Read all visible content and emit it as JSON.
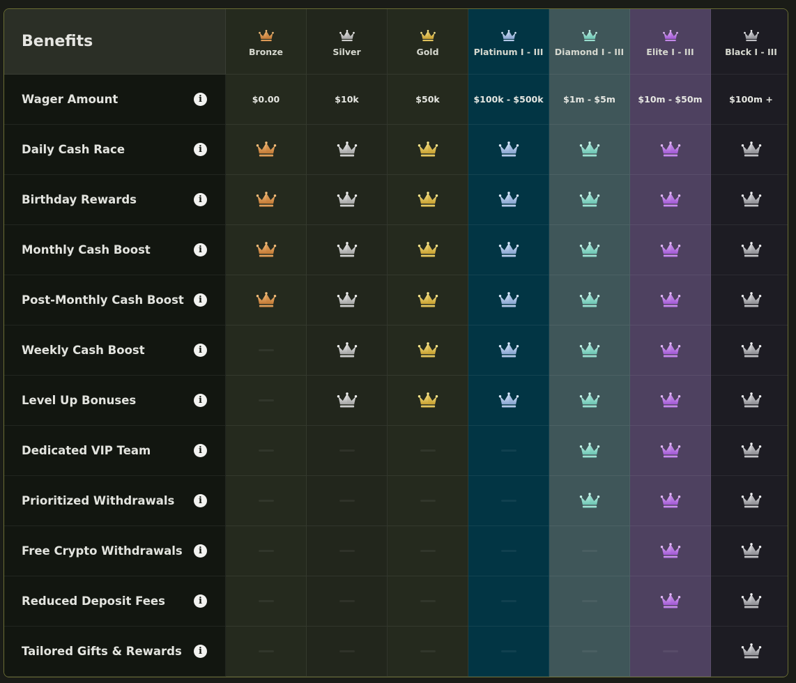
{
  "header": {
    "title": "Benefits"
  },
  "tiers": [
    {
      "name": "Bronze",
      "wager": "$0.00",
      "color_light": "#f3bd7a",
      "color_dark": "#c47a36"
    },
    {
      "name": "Silver",
      "wager": "$10k",
      "color_light": "#f2f2f0",
      "color_dark": "#a6a6a6"
    },
    {
      "name": "Gold",
      "wager": "$50k",
      "color_light": "#f7e58b",
      "color_dark": "#caa232"
    },
    {
      "name": "Platinum I - III",
      "wager": "$100k - $500k",
      "color_light": "#dbe9fb",
      "color_dark": "#8aa6d2"
    },
    {
      "name": "Diamond I - III",
      "wager": "$1m - $5m",
      "color_light": "#c7f5ea",
      "color_dark": "#6ec7b4"
    },
    {
      "name": "Elite I - III",
      "wager": "$10m - $50m",
      "color_light": "#e3b8f8",
      "color_dark": "#a259d6"
    },
    {
      "name": "Black I - III",
      "wager": "$100m +",
      "color_light": "#f0f0f2",
      "color_dark": "#8e8e94"
    }
  ],
  "wager_label": "Wager Amount",
  "benefits": [
    {
      "label": "Daily Cash Race",
      "availability": [
        true,
        true,
        true,
        true,
        true,
        true,
        true
      ]
    },
    {
      "label": "Birthday Rewards",
      "availability": [
        true,
        true,
        true,
        true,
        true,
        true,
        true
      ]
    },
    {
      "label": "Monthly Cash Boost",
      "availability": [
        true,
        true,
        true,
        true,
        true,
        true,
        true
      ]
    },
    {
      "label": "Post-Monthly Cash Boost",
      "availability": [
        true,
        true,
        true,
        true,
        true,
        true,
        true
      ]
    },
    {
      "label": "Weekly Cash Boost",
      "availability": [
        false,
        true,
        true,
        true,
        true,
        true,
        true
      ]
    },
    {
      "label": "Level Up Bonuses",
      "availability": [
        false,
        true,
        true,
        true,
        true,
        true,
        true
      ]
    },
    {
      "label": "Dedicated VIP Team",
      "availability": [
        false,
        false,
        false,
        false,
        true,
        true,
        true
      ]
    },
    {
      "label": "Prioritized Withdrawals",
      "availability": [
        false,
        false,
        false,
        false,
        true,
        true,
        true
      ]
    },
    {
      "label": "Free Crypto Withdrawals",
      "availability": [
        false,
        false,
        false,
        false,
        false,
        true,
        true
      ]
    },
    {
      "label": "Reduced Deposit Fees",
      "availability": [
        false,
        false,
        false,
        false,
        false,
        true,
        true
      ]
    },
    {
      "label": "Tailored Gifts & Rewards",
      "availability": [
        false,
        false,
        false,
        false,
        false,
        false,
        true
      ]
    }
  ]
}
